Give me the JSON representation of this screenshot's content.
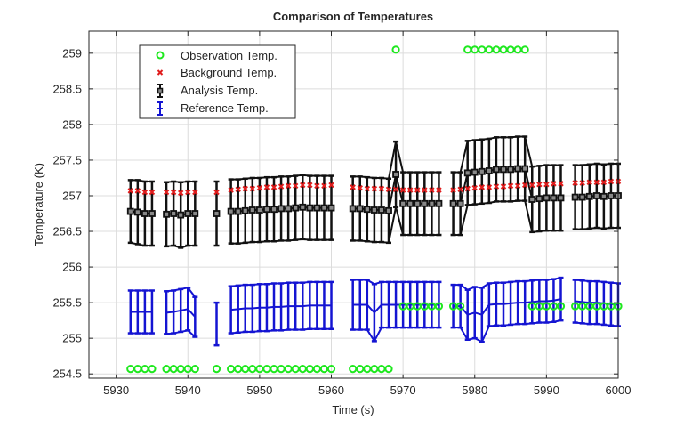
{
  "chart_data": {
    "type": "scatter",
    "title": "Comparison of Temperatures",
    "xlabel": "Time (s)",
    "ylabel": "Temperature (K)",
    "xlim": [
      5926.2,
      6000
    ],
    "ylim": [
      254.44,
      259.31
    ],
    "xticks": [
      5930,
      5940,
      5950,
      5960,
      5970,
      5980,
      5990,
      6000
    ],
    "yticks": [
      254.5,
      255,
      255.5,
      256,
      256.5,
      257,
      257.5,
      258,
      258.5,
      259
    ],
    "grid": true,
    "legend_position": "top-left",
    "colors": {
      "observation": "#1ee81e",
      "background": "#e01c1c",
      "analysis": "#111111",
      "reference": "#1414d2"
    },
    "legend": [
      "Observation Temp.",
      "Background Temp.",
      "Analysis Temp.",
      "Reference Temp."
    ],
    "x": [
      5932,
      5933,
      5934,
      5935,
      5937,
      5938,
      5939,
      5940,
      5941,
      5944,
      5946,
      5947,
      5948,
      5949,
      5950,
      5951,
      5952,
      5953,
      5954,
      5955,
      5956,
      5957,
      5958,
      5959,
      5960,
      5963,
      5964,
      5965,
      5966,
      5967,
      5968,
      5969,
      5970,
      5971,
      5972,
      5973,
      5974,
      5975,
      5977,
      5978,
      5979,
      5980,
      5981,
      5982,
      5983,
      5984,
      5985,
      5986,
      5987,
      5988,
      5989,
      5990,
      5991,
      5992,
      5994,
      5995,
      5996,
      5997,
      5998,
      5999,
      6000
    ],
    "series": [
      {
        "name": "Observation Temp.",
        "marker": "circle",
        "values": [
          254.57,
          254.57,
          254.57,
          254.57,
          254.57,
          254.57,
          254.57,
          254.57,
          254.57,
          254.57,
          254.57,
          254.57,
          254.57,
          254.57,
          254.57,
          254.57,
          254.57,
          254.57,
          254.57,
          254.57,
          254.57,
          254.57,
          254.57,
          254.57,
          254.57,
          254.57,
          254.57,
          254.57,
          254.57,
          254.57,
          254.57,
          259.05,
          255.45,
          255.45,
          255.45,
          255.45,
          255.45,
          255.45,
          255.45,
          255.45,
          259.05,
          259.05,
          259.05,
          259.05,
          259.05,
          259.05,
          259.05,
          259.05,
          259.05,
          255.45,
          255.45,
          255.45,
          255.45,
          255.45,
          255.45,
          255.45,
          255.45,
          255.45,
          255.45,
          255.45,
          255.45
        ]
      },
      {
        "name": "Background Temp.",
        "marker": "x",
        "values": [
          257.07,
          257.07,
          257.05,
          257.05,
          257.05,
          257.05,
          257.04,
          257.05,
          257.05,
          257.05,
          257.08,
          257.09,
          257.1,
          257.1,
          257.11,
          257.12,
          257.12,
          257.13,
          257.14,
          257.14,
          257.15,
          257.15,
          257.14,
          257.14,
          257.15,
          257.12,
          257.11,
          257.1,
          257.1,
          257.1,
          257.09,
          257.09,
          257.08,
          257.08,
          257.08,
          257.08,
          257.08,
          257.08,
          257.08,
          257.09,
          257.1,
          257.11,
          257.12,
          257.12,
          257.13,
          257.13,
          257.14,
          257.14,
          257.15,
          257.15,
          257.16,
          257.16,
          257.17,
          257.17,
          257.18,
          257.18,
          257.19,
          257.19,
          257.19,
          257.2,
          257.2
        ]
      },
      {
        "name": "Analysis Temp.",
        "marker": "square-errorbar",
        "values": [
          256.78,
          256.77,
          256.75,
          256.75,
          256.74,
          256.75,
          256.73,
          256.75,
          256.75,
          256.75,
          256.78,
          256.78,
          256.79,
          256.8,
          256.8,
          256.81,
          256.81,
          256.82,
          256.82,
          256.83,
          256.84,
          256.83,
          256.83,
          256.83,
          256.83,
          256.82,
          256.82,
          256.81,
          256.8,
          256.8,
          256.79,
          257.3,
          256.89,
          256.89,
          256.89,
          256.89,
          256.89,
          256.89,
          256.89,
          256.89,
          257.32,
          257.33,
          257.34,
          257.35,
          257.37,
          257.37,
          257.37,
          257.38,
          257.38,
          256.95,
          256.96,
          256.97,
          256.97,
          256.97,
          256.98,
          256.98,
          256.99,
          257.0,
          256.99,
          257.0,
          257.0
        ],
        "errors": [
          0.44,
          0.45,
          0.45,
          0.45,
          0.45,
          0.45,
          0.46,
          0.45,
          0.45,
          0.45,
          0.45,
          0.45,
          0.45,
          0.45,
          0.45,
          0.45,
          0.45,
          0.45,
          0.45,
          0.45,
          0.45,
          0.45,
          0.45,
          0.45,
          0.45,
          0.45,
          0.45,
          0.45,
          0.45,
          0.45,
          0.45,
          0.46,
          0.44,
          0.44,
          0.44,
          0.44,
          0.44,
          0.44,
          0.44,
          0.44,
          0.45,
          0.45,
          0.45,
          0.45,
          0.45,
          0.45,
          0.45,
          0.45,
          0.45,
          0.46,
          0.46,
          0.46,
          0.46,
          0.46,
          0.45,
          0.45,
          0.45,
          0.45,
          0.45,
          0.45,
          0.45
        ]
      },
      {
        "name": "Reference Temp.",
        "marker": "errorbar",
        "values": [
          255.37,
          255.37,
          255.37,
          255.37,
          255.36,
          255.37,
          255.39,
          255.41,
          255.3,
          255.2,
          255.4,
          255.41,
          255.42,
          255.42,
          255.43,
          255.43,
          255.44,
          255.44,
          255.45,
          255.45,
          255.45,
          255.46,
          255.46,
          255.46,
          255.46,
          255.47,
          255.47,
          255.47,
          255.36,
          255.47,
          255.47,
          255.47,
          255.47,
          255.47,
          255.47,
          255.47,
          255.47,
          255.47,
          255.45,
          255.45,
          255.33,
          255.36,
          255.33,
          255.47,
          255.48,
          255.48,
          255.49,
          255.5,
          255.5,
          255.51,
          255.52,
          255.52,
          255.53,
          255.55,
          255.52,
          255.51,
          255.5,
          255.5,
          255.49,
          255.48,
          255.47
        ],
        "errors": [
          0.3,
          0.3,
          0.3,
          0.3,
          0.3,
          0.3,
          0.3,
          0.3,
          0.28,
          0.3,
          0.33,
          0.33,
          0.33,
          0.33,
          0.33,
          0.33,
          0.33,
          0.33,
          0.33,
          0.33,
          0.33,
          0.33,
          0.33,
          0.33,
          0.33,
          0.35,
          0.35,
          0.35,
          0.4,
          0.32,
          0.32,
          0.32,
          0.32,
          0.32,
          0.32,
          0.32,
          0.32,
          0.32,
          0.3,
          0.3,
          0.35,
          0.36,
          0.38,
          0.3,
          0.3,
          0.3,
          0.3,
          0.3,
          0.3,
          0.3,
          0.3,
          0.3,
          0.3,
          0.3,
          0.3,
          0.3,
          0.3,
          0.3,
          0.3,
          0.3,
          0.3
        ]
      }
    ]
  }
}
